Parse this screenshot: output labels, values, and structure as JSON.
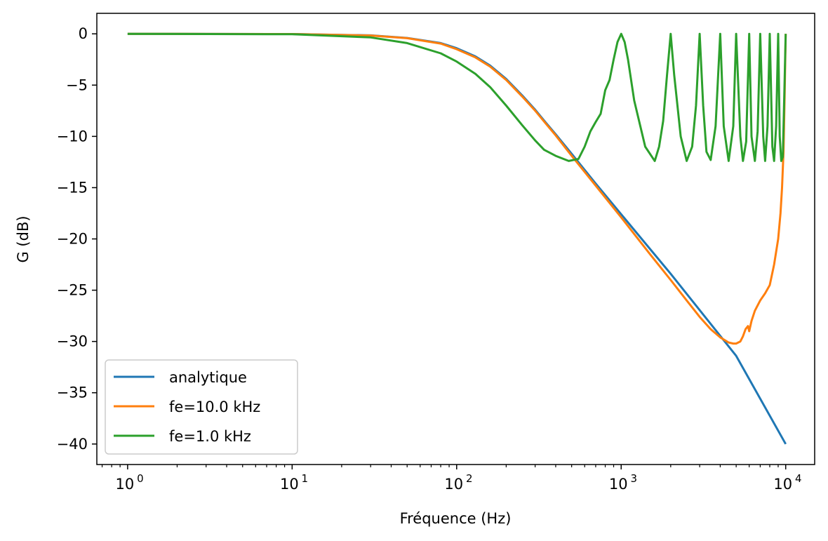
{
  "chart_data": {
    "type": "line",
    "title": "",
    "xlabel": "Fréquence (Hz)",
    "ylabel": "G (dB)",
    "xscale": "log",
    "xlim": [
      0.65,
      15000
    ],
    "ylim": [
      -42,
      2
    ],
    "xticks": [
      {
        "value": 1,
        "base": "10",
        "exp": "0"
      },
      {
        "value": 10,
        "base": "10",
        "exp": "1"
      },
      {
        "value": 100,
        "base": "10",
        "exp": "2"
      },
      {
        "value": 1000,
        "base": "10",
        "exp": "3"
      },
      {
        "value": 10000,
        "base": "10",
        "exp": "4"
      }
    ],
    "yticks": [
      {
        "value": 0,
        "label": "0"
      },
      {
        "value": -5,
        "label": "−5"
      },
      {
        "value": -10,
        "label": "−10"
      },
      {
        "value": -15,
        "label": "−15"
      },
      {
        "value": -20,
        "label": "−20"
      },
      {
        "value": -25,
        "label": "−25"
      },
      {
        "value": -30,
        "label": "−30"
      },
      {
        "value": -35,
        "label": "−35"
      },
      {
        "value": -40,
        "label": "−40"
      }
    ],
    "grid": false,
    "legend_position": "lower-left",
    "series": [
      {
        "name": "analytique",
        "color": "#1f77b4",
        "x": [
          1,
          10,
          30,
          50,
          80,
          100,
          130,
          160,
          200,
          250,
          300,
          350,
          400,
          500,
          700,
          1000,
          2000,
          5000,
          10000
        ],
        "y": [
          0,
          -0.02,
          -0.15,
          -0.4,
          -0.9,
          -1.4,
          -2.2,
          -3.1,
          -4.4,
          -6.0,
          -7.4,
          -8.7,
          -9.8,
          -11.7,
          -14.6,
          -17.6,
          -23.4,
          -31.4,
          -40.0
        ]
      },
      {
        "name": "fe=10.0 kHz",
        "color": "#ff7f0e",
        "x": [
          1,
          10,
          30,
          50,
          80,
          100,
          130,
          160,
          200,
          250,
          300,
          350,
          400,
          500,
          700,
          1000,
          1500,
          2000,
          2500,
          3000,
          3500,
          4000,
          4500,
          4800,
          5000,
          5300,
          5500,
          5700,
          5900,
          6000,
          6200,
          6500,
          7000,
          7500,
          8000,
          8500,
          9000,
          9300,
          9500,
          9700,
          9850,
          10000
        ],
        "y": [
          0,
          -0.02,
          -0.16,
          -0.42,
          -0.95,
          -1.5,
          -2.3,
          -3.2,
          -4.5,
          -6.1,
          -7.5,
          -8.8,
          -9.9,
          -11.9,
          -14.8,
          -17.9,
          -21.5,
          -24.0,
          -26.0,
          -27.6,
          -28.8,
          -29.6,
          -30.1,
          -30.2,
          -30.2,
          -30.0,
          -29.5,
          -28.8,
          -28.5,
          -29.0,
          -28.0,
          -27.0,
          -26.0,
          -25.3,
          -24.5,
          -22.5,
          -20.0,
          -17.5,
          -15.0,
          -11.5,
          -6.0,
          0.0
        ]
      },
      {
        "name": "fe=1.0 kHz",
        "color": "#2ca02c",
        "x": [
          1,
          10,
          30,
          50,
          80,
          100,
          130,
          160,
          200,
          250,
          300,
          340,
          400,
          480,
          550,
          600,
          650,
          700,
          750,
          800,
          850,
          900,
          950,
          1000,
          1050,
          1100,
          1200,
          1400,
          1600,
          1700,
          1800,
          1900,
          2000,
          2100,
          2300,
          2500,
          2700,
          2850,
          3000,
          3150,
          3300,
          3500,
          3750,
          4000,
          4200,
          4500,
          4800,
          5000,
          5300,
          5500,
          5750,
          6000,
          6200,
          6500,
          6750,
          7000,
          7300,
          7500,
          7750,
          8000,
          8300,
          8500,
          8750,
          9000,
          9200,
          9400,
          9600,
          9800,
          10000
        ],
        "y": [
          0,
          -0.04,
          -0.35,
          -0.9,
          -1.9,
          -2.7,
          -3.9,
          -5.2,
          -7.0,
          -8.9,
          -10.4,
          -11.3,
          -11.9,
          -12.4,
          -12.2,
          -11.0,
          -9.5,
          -8.6,
          -7.8,
          -5.5,
          -4.5,
          -2.5,
          -0.8,
          0.0,
          -0.8,
          -2.5,
          -6.5,
          -11.0,
          -12.4,
          -11.0,
          -8.5,
          -4.0,
          0.0,
          -4.0,
          -10.0,
          -12.4,
          -11.0,
          -7.0,
          0.0,
          -7.0,
          -11.5,
          -12.3,
          -9.0,
          0.0,
          -9.0,
          -12.4,
          -9.0,
          0.0,
          -10.0,
          -12.4,
          -10.5,
          0.0,
          -10.0,
          -12.4,
          -9.5,
          0.0,
          -10.0,
          -12.4,
          -9.0,
          0.0,
          -11.0,
          -12.4,
          -9.0,
          0.0,
          -10.0,
          -12.4,
          -12.0,
          -6.0,
          0.0
        ]
      }
    ]
  }
}
